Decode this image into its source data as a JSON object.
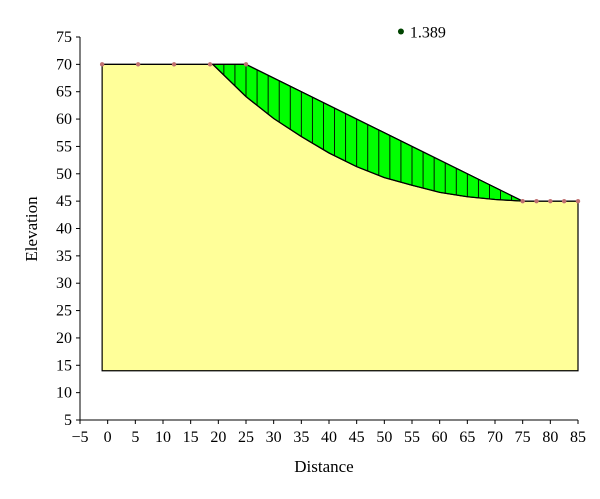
{
  "chart_data": {
    "type": "area",
    "xlabel": "Distance",
    "ylabel": "Elevation",
    "xlim": [
      -5,
      85
    ],
    "ylim": [
      5,
      75
    ],
    "xticks": [
      -5,
      0,
      5,
      10,
      15,
      20,
      25,
      30,
      35,
      40,
      45,
      50,
      55,
      60,
      65,
      70,
      75,
      80,
      85
    ],
    "yticks": [
      5,
      10,
      15,
      20,
      25,
      30,
      35,
      40,
      45,
      50,
      55,
      60,
      65,
      70,
      75
    ],
    "xtick_labels": [
      "−5",
      "0",
      "5",
      "10",
      "15",
      "20",
      "25",
      "30",
      "35",
      "40",
      "45",
      "50",
      "55",
      "60",
      "65",
      "70",
      "75",
      "80",
      "85"
    ],
    "ytick_labels": [
      "5",
      "10",
      "15",
      "20",
      "25",
      "30",
      "35",
      "40",
      "45",
      "50",
      "55",
      "60",
      "65",
      "70",
      "75"
    ],
    "ground_profile": {
      "x": [
        -1,
        19,
        25,
        75,
        85,
        85,
        -1
      ],
      "y": [
        70,
        70,
        70,
        45,
        45,
        14,
        14
      ]
    },
    "ground_points": {
      "x": [
        -1,
        5.5,
        12,
        18.5,
        25,
        75,
        77.5,
        80,
        82.5,
        85
      ],
      "y": [
        70,
        70,
        70,
        70,
        70,
        45,
        45,
        45,
        45,
        45
      ]
    },
    "slip_surface": {
      "x": [
        19,
        25,
        30,
        35,
        40,
        45,
        50,
        55,
        60,
        65,
        70,
        75
      ],
      "y": [
        70,
        64.1,
        60.1,
        56.8,
        53.8,
        51.3,
        49.3,
        47.9,
        46.6,
        45.8,
        45.3,
        45
      ]
    },
    "slice_count": 28,
    "center_point": {
      "x": 53,
      "y": 76
    },
    "factor_of_safety_label": "1.389",
    "colors": {
      "soil": "#ffff99",
      "sliding_mass": "#00ff00",
      "point_marker": "#c07070",
      "center": "#004400"
    }
  }
}
